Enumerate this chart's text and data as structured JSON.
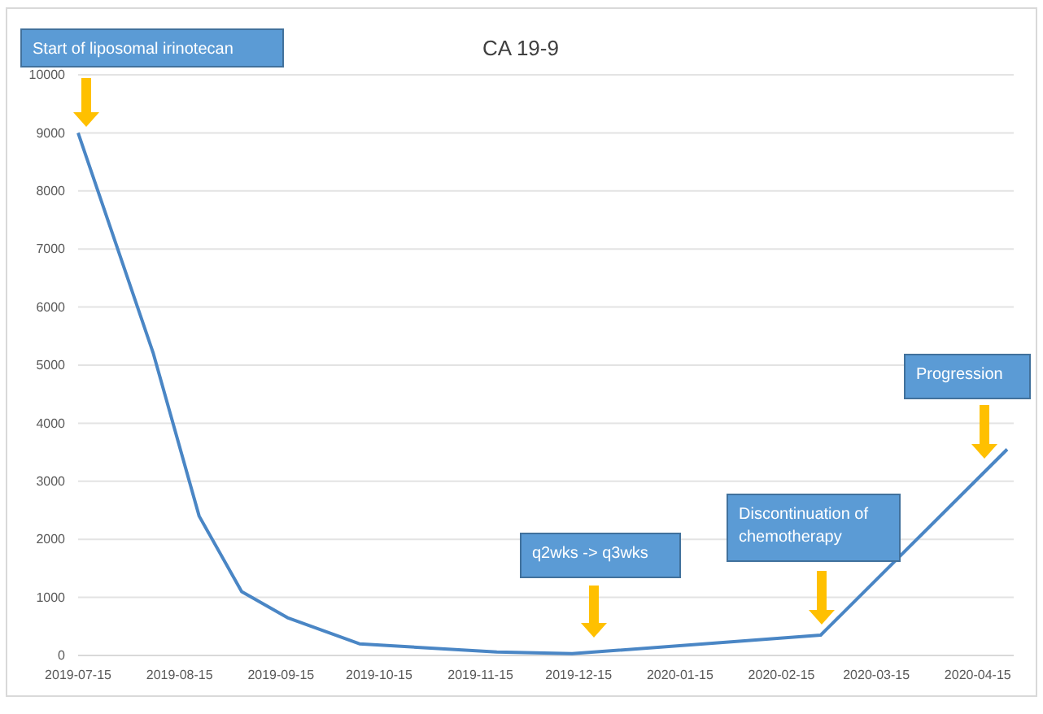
{
  "chart_data": {
    "type": "line",
    "title": "CA 19-9",
    "x": [
      "2019-07-15",
      "2019-08-07",
      "2019-08-21",
      "2019-09-03",
      "2019-09-17",
      "2019-10-09",
      "2019-11-20",
      "2019-12-13",
      "2020-02-27",
      "2020-04-24"
    ],
    "series": [
      {
        "color": "#4a86c5",
        "values": [
          9000,
          5200,
          2400,
          1100,
          650,
          200,
          60,
          30,
          350,
          3550
        ]
      }
    ],
    "xlim": [
      "2019-07-15",
      "2020-04-26"
    ],
    "xticks": [
      "2019-07-15",
      "2019-08-15",
      "2019-09-15",
      "2019-10-15",
      "2019-11-15",
      "2019-12-15",
      "2020-01-15",
      "2020-02-15",
      "2020-03-15",
      "2020-04-15"
    ],
    "ylim": [
      0,
      10000
    ],
    "yticks": [
      0,
      1000,
      2000,
      3000,
      4000,
      5000,
      6000,
      7000,
      8000,
      9000,
      10000
    ],
    "grid": "y",
    "marker": "none",
    "line_style": "solid",
    "annotations": [
      "Start of liposomal irinotecan",
      "q2wks -> q3wks",
      "Discontinuation of\nchemotherapy",
      "Progression"
    ]
  }
}
